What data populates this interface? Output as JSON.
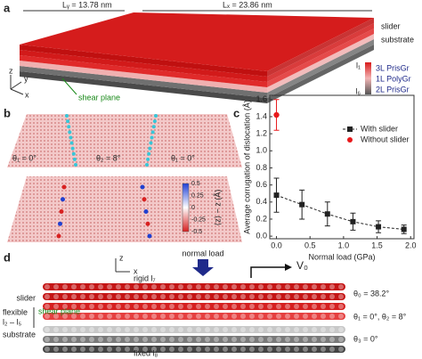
{
  "panels": {
    "a": {
      "label": "a",
      "ly": "Lᵧ = 13.78 nm",
      "lx": "Lₓ = 23.86 nm",
      "slider": "slider",
      "substrate": "substrate",
      "shear_plane": "shear plane",
      "l_top": "l₁",
      "l_bottom": "l₆",
      "layers": [
        "3L PrisGr",
        "1L PolyGr",
        "2L PrisGr"
      ],
      "axes": [
        "z",
        "y",
        "x"
      ]
    },
    "b": {
      "label": "b",
      "angles": [
        "θ₁ = 0°",
        "θ₂ = 8°",
        "θ₁ = 0°"
      ],
      "colorbar_ticks": [
        "0.5",
        "0.25",
        "0",
        "-0.25",
        "-0.5"
      ],
      "colorbar_label": "⟨z⟩ − z (Å)"
    },
    "d": {
      "label": "d",
      "axes": [
        "z",
        "x"
      ],
      "normal_load": "normal load",
      "velocity": "V₀",
      "rigid": "rigid l₇",
      "slider": "slider",
      "flexible": "flexible",
      "flexible_range": "l₂ – l₅",
      "shear_plane": "shear plane",
      "substrate": "substrate",
      "fixed": "fixed l₈",
      "angles": [
        "θ₀ = 38.2°",
        "θ₁ = 0°, θ₂ = 8°",
        "θ₃ = 0°"
      ]
    }
  },
  "chart_data": {
    "type": "errorbar",
    "panel_label": "c",
    "x_label": "Normal load (GPa)",
    "y_label": "Average corrugation of dislocation (Å)",
    "series": [
      {
        "name": "With slider",
        "color": "#222222",
        "marker": "square",
        "line": "dashed",
        "x": [
          0,
          0.38,
          0.76,
          1.14,
          1.52,
          1.9
        ],
        "values": [
          0.48,
          0.37,
          0.26,
          0.17,
          0.11,
          0.08
        ],
        "errors": [
          0.2,
          0.17,
          0.14,
          0.1,
          0.07,
          0.05
        ]
      },
      {
        "name": "Without slider",
        "color": "#e8191b",
        "marker": "circle",
        "x": [
          0
        ],
        "values": [
          1.42
        ],
        "errors": [
          0.18
        ]
      }
    ],
    "xlim": [
      -0.1,
      2.05
    ],
    "ylim": [
      -0.03,
      1.65
    ],
    "xticks": [
      {
        "value": 0,
        "label": "0.0"
      },
      0.5,
      {
        "value": 1,
        "label": "1.0"
      },
      1.5,
      {
        "value": 2,
        "label": "2.0"
      }
    ],
    "yticks": [
      {
        "value": 0,
        "label": "0.0"
      },
      0.2,
      0.4,
      0.6,
      0.8,
      {
        "value": 1,
        "label": "1.0"
      },
      1.2,
      1.4,
      1.6
    ],
    "legend": "upper right"
  }
}
